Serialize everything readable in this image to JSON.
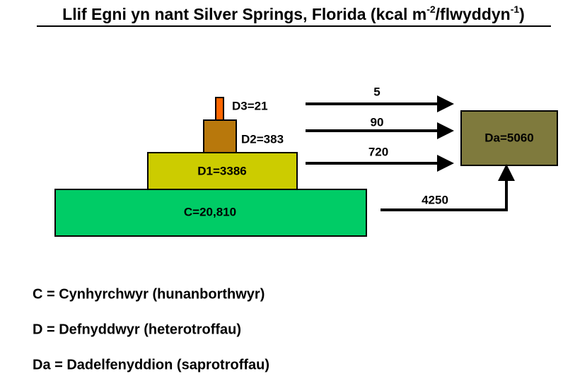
{
  "title": {
    "main": "Llif Egni yn nant Silver Springs, Florida (kcal m",
    "sup1": "-2",
    "mid": "/flwyddyn",
    "sup2": "-1",
    "end": ")"
  },
  "levels": [
    {
      "label": "C=20,810"
    },
    {
      "label": "D1=3386"
    },
    {
      "label": "D2=383"
    },
    {
      "label": "D3=21"
    }
  ],
  "decomposers": {
    "label": "Da=5060"
  },
  "flows": [
    {
      "label": "5"
    },
    {
      "label": "90"
    },
    {
      "label": "720"
    },
    {
      "label": "4250"
    }
  ],
  "legend": [
    "C = Cynhyrchwyr (hunanborthwyr)",
    "D = Defnyddwyr (heterotroffau)",
    "Da = Dadelfenyddion (saprotroffau)"
  ]
}
